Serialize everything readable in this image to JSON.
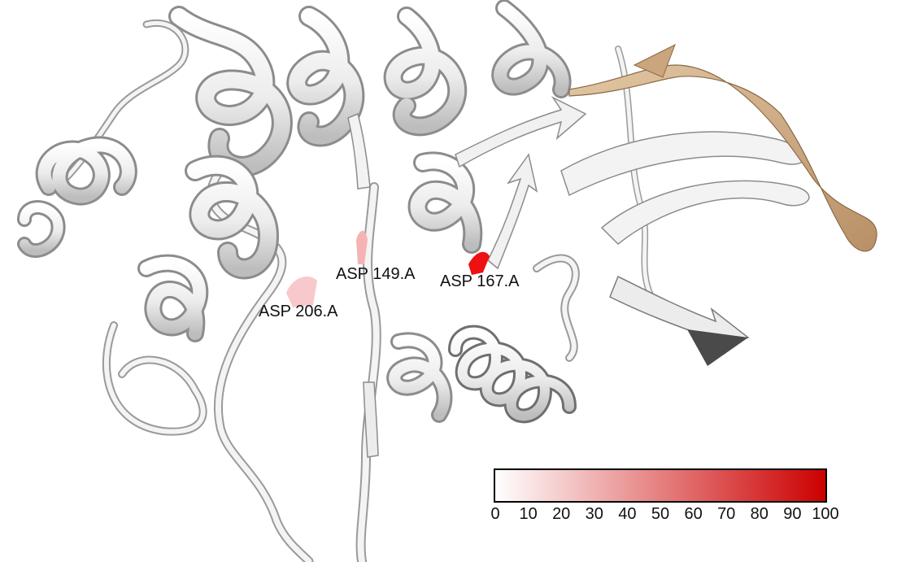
{
  "structure": {
    "ribbon_color": "#f2f2f2",
    "ribbon_shadow": "#8c8c8c",
    "highlight_segment_color": "#c8a27a"
  },
  "residues": [
    {
      "label": "ASP 149.A",
      "color": "#f6b3b3"
    },
    {
      "label": "ASP 167.A",
      "color": "#ee1111"
    },
    {
      "label": "ASP 206.A",
      "color": "#f8c9cc"
    }
  ],
  "colorbar": {
    "min_color": "#ffffff",
    "max_color": "#cc0000",
    "ticks": [
      "0",
      "10",
      "20",
      "30",
      "40",
      "50",
      "60",
      "70",
      "80",
      "90",
      "100"
    ]
  }
}
